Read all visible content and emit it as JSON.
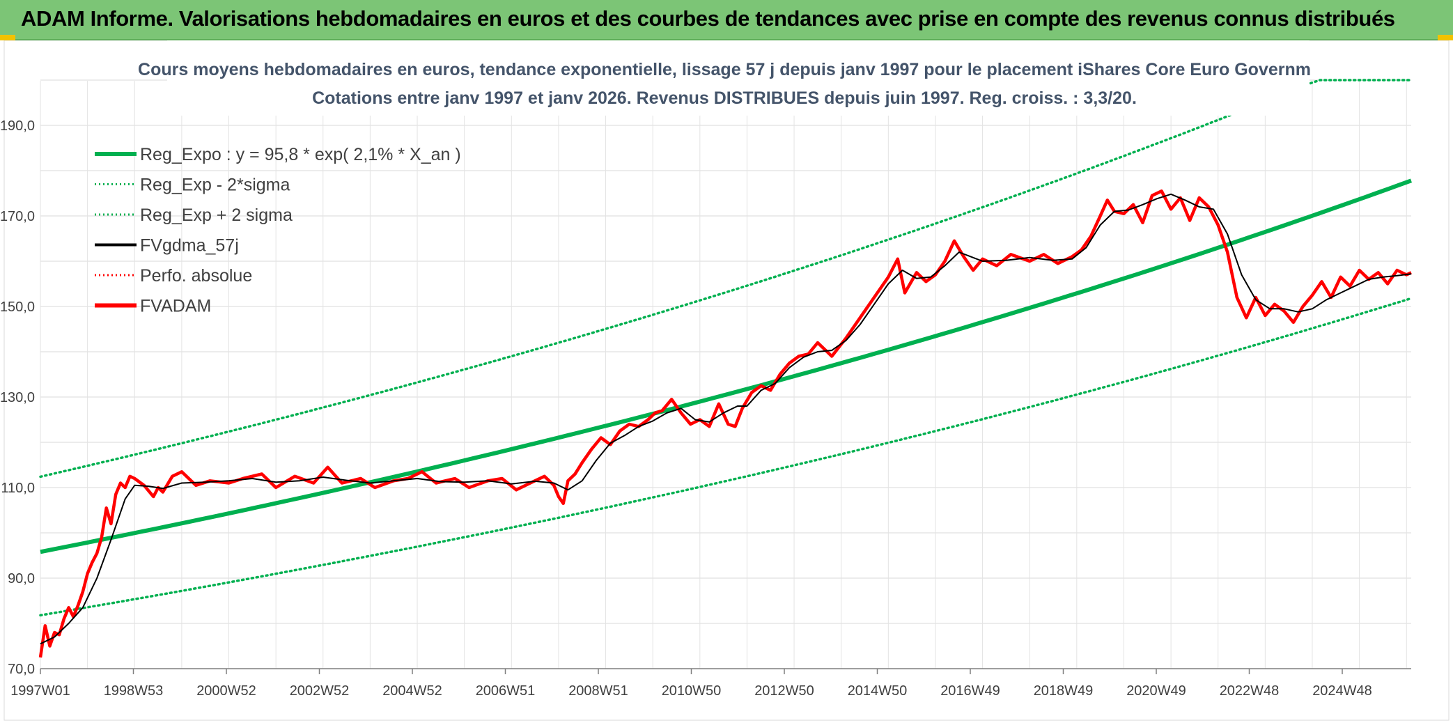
{
  "banner": {
    "title": "ADAM Informe. Valorisations hebdomadaires en euros et des courbes de tendances avec prise en compte des revenus connus distribués",
    "background": "#7cc576",
    "accent": "#f2c200"
  },
  "chart_data": {
    "type": "line",
    "title": "Cours moyens hebdomadaires en euros, tendance exponentielle, lissage 57 j depuis janv 1997 pour le placement iShares Core Euro Governm",
    "subtitle": "Cotations entre janv 1997 et janv 2026. Revenus DISTRIBUES depuis juin 1997. Reg. croiss. : 3,3/20.",
    "xlabel": "",
    "ylabel": "",
    "x_tick_labels": [
      "1997W01",
      "1998W53",
      "2000W52",
      "2002W52",
      "2004W52",
      "2006W51",
      "2008W51",
      "2010W50",
      "2012W50",
      "2014W50",
      "2016W49",
      "2018W49",
      "2020W49",
      "2022W48",
      "2024W48"
    ],
    "y_tick_labels": [
      "70,0",
      "90,0",
      "110,0",
      "130,0",
      "150,0",
      "170,0",
      "190,0"
    ],
    "ylim": [
      70,
      200
    ],
    "xlim": [
      1997.0,
      2026.1
    ],
    "grid": true,
    "legend_position": "top-left",
    "legend": [
      {
        "label": "Reg_Expo : y = 95,8 * exp( 2,1% *  X_an )",
        "color": "#00b050",
        "style": "solid-thick"
      },
      {
        "label": "Reg_Exp - 2*sigma",
        "color": "#00b050",
        "style": "dotted"
      },
      {
        "label": "Reg_Exp + 2 sigma",
        "color": "#00b050",
        "style": "dotted"
      },
      {
        "label": "FVgdma_57j",
        "color": "#000000",
        "style": "solid"
      },
      {
        "label": "Perfo. absolue",
        "color": "#ff0000",
        "style": "dotted"
      },
      {
        "label": "FVADAM",
        "color": "#ff0000",
        "style": "solid-thick"
      }
    ],
    "series": [
      {
        "name": "Reg_Expo : y = 95,8 * exp( 2,1% *  X_an )",
        "role": "regression",
        "a": 95.8,
        "growth": 0.021,
        "x": [
          1997.0,
          2026.1
        ],
        "y": [
          95.8,
          177.8
        ]
      },
      {
        "name": "Reg_Exp - 2*sigma",
        "role": "band-lower",
        "x": [
          1997.0,
          2026.1
        ],
        "y": [
          81.8,
          151.8
        ]
      },
      {
        "name": "Reg_Exp + 2 sigma",
        "role": "band-upper",
        "x": [
          1997.0,
          2026.1
        ],
        "y": [
          112.4,
          208.6
        ],
        "cap": 200
      },
      {
        "name": "FVgdma_57j",
        "role": "smoothed",
        "x": [
          1997.0,
          1997.3,
          1997.6,
          1997.9,
          1998.2,
          1998.5,
          1998.8,
          1999.0,
          1999.3,
          1999.6,
          2000.0,
          2000.5,
          2001.0,
          2001.5,
          2002.0,
          2002.5,
          2003.0,
          2003.5,
          2004.0,
          2004.5,
          2005.0,
          2005.5,
          2006.0,
          2006.5,
          2007.0,
          2007.5,
          2007.9,
          2008.2,
          2008.5,
          2008.8,
          2009.1,
          2009.4,
          2009.7,
          2010.0,
          2010.3,
          2010.6,
          2010.9,
          2011.2,
          2011.5,
          2011.8,
          2012.0,
          2012.3,
          2012.6,
          2012.9,
          2013.2,
          2013.5,
          2013.8,
          2014.1,
          2014.4,
          2014.7,
          2015.0,
          2015.3,
          2015.6,
          2015.9,
          2016.2,
          2016.5,
          2016.8,
          2017.0,
          2017.5,
          2018.0,
          2018.5,
          2018.9,
          2019.2,
          2019.5,
          2019.8,
          2020.1,
          2020.4,
          2020.7,
          2021.0,
          2021.3,
          2021.6,
          2021.9,
          2022.2,
          2022.5,
          2022.8,
          2023.1,
          2023.4,
          2023.7,
          2024.0,
          2024.3,
          2024.6,
          2024.9,
          2025.2,
          2025.5,
          2025.8,
          2026.1
        ],
        "y": [
          75.5,
          77.0,
          80.0,
          83.5,
          90.0,
          98.5,
          107.5,
          110.5,
          110.3,
          109.8,
          111.0,
          111.2,
          111.5,
          112.0,
          111.2,
          111.5,
          112.3,
          111.6,
          111.0,
          111.5,
          112.0,
          111.3,
          111.2,
          111.5,
          110.8,
          111.4,
          111.0,
          109.5,
          111.5,
          116.0,
          119.8,
          121.5,
          123.5,
          124.7,
          126.5,
          127.5,
          125.0,
          124.5,
          126.5,
          128.0,
          128.0,
          131.5,
          133.0,
          136.5,
          138.8,
          140.0,
          140.3,
          142.5,
          146.0,
          150.5,
          155.0,
          158.0,
          156.2,
          156.5,
          159.0,
          162.0,
          160.8,
          160.0,
          160.2,
          160.8,
          160.2,
          160.5,
          163.0,
          168.0,
          171.0,
          171.3,
          172.5,
          173.8,
          174.8,
          173.5,
          172.0,
          171.5,
          166.0,
          157.0,
          151.5,
          149.5,
          149.5,
          148.8,
          149.5,
          151.5,
          153.0,
          154.5,
          156.0,
          156.5,
          156.8,
          157.2
        ]
      },
      {
        "name": "FVADAM",
        "role": "raw",
        "x": [
          1997.0,
          1997.1,
          1997.2,
          1997.3,
          1997.4,
          1997.5,
          1997.6,
          1997.7,
          1997.8,
          1997.9,
          1998.0,
          1998.1,
          1998.2,
          1998.3,
          1998.4,
          1998.5,
          1998.6,
          1998.7,
          1998.8,
          1998.9,
          1999.0,
          1999.2,
          1999.4,
          1999.5,
          1999.6,
          1999.8,
          2000.0,
          2000.3,
          2000.6,
          2001.0,
          2001.3,
          2001.7,
          2002.0,
          2002.4,
          2002.8,
          2003.1,
          2003.4,
          2003.8,
          2004.1,
          2004.5,
          2004.8,
          2005.1,
          2005.4,
          2005.8,
          2006.1,
          2006.5,
          2006.8,
          2007.1,
          2007.4,
          2007.7,
          2007.9,
          2008.0,
          2008.1,
          2008.2,
          2008.35,
          2008.5,
          2008.7,
          2008.9,
          2009.1,
          2009.3,
          2009.5,
          2009.7,
          2009.9,
          2010.05,
          2010.2,
          2010.4,
          2010.6,
          2010.8,
          2011.0,
          2011.2,
          2011.4,
          2011.6,
          2011.75,
          2011.9,
          2012.1,
          2012.3,
          2012.5,
          2012.7,
          2012.9,
          2013.1,
          2013.3,
          2013.5,
          2013.8,
          2014.1,
          2014.4,
          2014.7,
          2015.0,
          2015.2,
          2015.35,
          2015.6,
          2015.8,
          2016.0,
          2016.2,
          2016.4,
          2016.6,
          2016.8,
          2017.0,
          2017.3,
          2017.6,
          2018.0,
          2018.3,
          2018.6,
          2018.9,
          2019.1,
          2019.3,
          2019.5,
          2019.65,
          2019.8,
          2020.0,
          2020.2,
          2020.4,
          2020.6,
          2020.8,
          2021.0,
          2021.2,
          2021.4,
          2021.6,
          2021.8,
          2022.0,
          2022.2,
          2022.4,
          2022.6,
          2022.8,
          2023.0,
          2023.2,
          2023.4,
          2023.6,
          2023.8,
          2024.0,
          2024.2,
          2024.4,
          2024.6,
          2024.8,
          2025.0,
          2025.2,
          2025.4,
          2025.6,
          2025.8,
          2026.0,
          2026.1
        ],
        "y": [
          72.5,
          79.5,
          75.0,
          78.0,
          77.5,
          81.0,
          83.5,
          81.5,
          84.0,
          87.0,
          91.0,
          93.5,
          95.5,
          99.0,
          105.5,
          102.0,
          108.5,
          111.0,
          110.0,
          112.5,
          112.0,
          110.5,
          108.0,
          110.0,
          109.0,
          112.5,
          113.5,
          110.5,
          111.5,
          111.0,
          112.0,
          113.0,
          110.0,
          112.5,
          111.0,
          114.5,
          111.0,
          112.0,
          110.0,
          111.5,
          112.0,
          113.5,
          111.0,
          112.0,
          110.0,
          111.5,
          112.0,
          109.5,
          111.0,
          112.5,
          110.5,
          108.0,
          106.5,
          111.5,
          113.0,
          115.5,
          118.5,
          121.0,
          119.5,
          122.5,
          124.0,
          123.5,
          125.0,
          126.5,
          127.0,
          129.5,
          126.5,
          124.0,
          125.0,
          123.5,
          128.5,
          124.0,
          123.5,
          127.5,
          131.0,
          132.5,
          131.5,
          135.0,
          137.5,
          139.0,
          139.5,
          142.0,
          139.0,
          143.0,
          147.5,
          152.0,
          156.5,
          160.5,
          153.0,
          157.5,
          155.5,
          157.0,
          160.0,
          164.5,
          161.0,
          158.0,
          160.5,
          159.0,
          161.5,
          160.0,
          161.5,
          159.5,
          161.0,
          162.5,
          165.5,
          170.0,
          173.5,
          171.0,
          170.5,
          172.5,
          168.5,
          174.5,
          175.5,
          171.5,
          174.0,
          169.0,
          174.0,
          172.0,
          168.0,
          162.0,
          152.0,
          147.5,
          152.0,
          148.0,
          150.5,
          149.0,
          146.5,
          150.0,
          152.5,
          155.5,
          152.0,
          156.5,
          154.5,
          158.0,
          156.0,
          157.5,
          155.0,
          158.0,
          157.0,
          157.5
        ]
      }
    ]
  }
}
